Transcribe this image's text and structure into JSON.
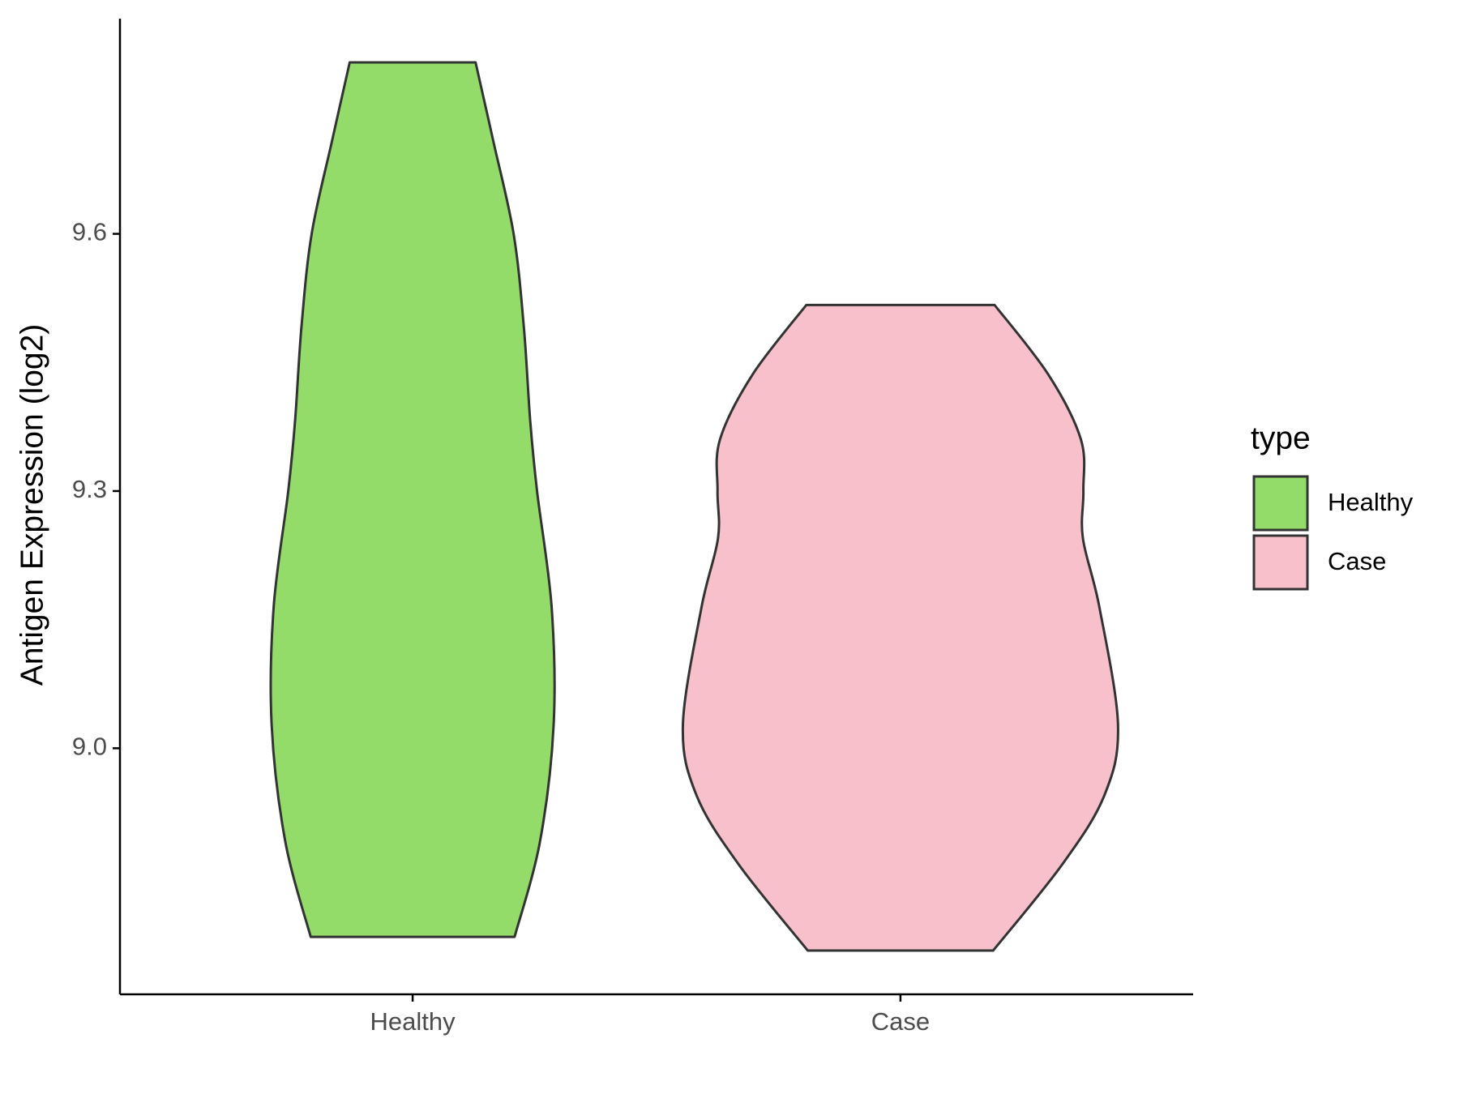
{
  "chart_data": {
    "type": "violin",
    "y_label": "Antigen Expression (log2)",
    "categories": [
      "Healthy",
      "Case"
    ],
    "legend_title": "type",
    "legend_position": "right",
    "ylim": [
      8.713,
      9.851
    ],
    "yticks": [
      {
        "value": 9.0,
        "label": "9.0"
      },
      {
        "value": 9.3,
        "label": "9.3"
      },
      {
        "value": 9.6,
        "label": "9.6"
      }
    ],
    "series": [
      {
        "name": "Healthy",
        "color": "#93dc6a",
        "y": [
          9.8,
          9.709,
          9.6,
          9.491,
          9.382,
          9.3,
          9.164,
          9.027,
          8.891,
          8.78
        ],
        "width": [
          0.129,
          0.165,
          0.207,
          0.228,
          0.241,
          0.255,
          0.285,
          0.289,
          0.261,
          0.209
        ]
      },
      {
        "name": "Case",
        "color": "#f7c0cb",
        "y": [
          9.517,
          9.436,
          9.36,
          9.3,
          9.245,
          9.164,
          9.027,
          8.945,
          8.864,
          8.764
        ],
        "width": [
          0.193,
          0.303,
          0.37,
          0.375,
          0.374,
          0.408,
          0.446,
          0.418,
          0.331,
          0.19
        ]
      }
    ]
  }
}
